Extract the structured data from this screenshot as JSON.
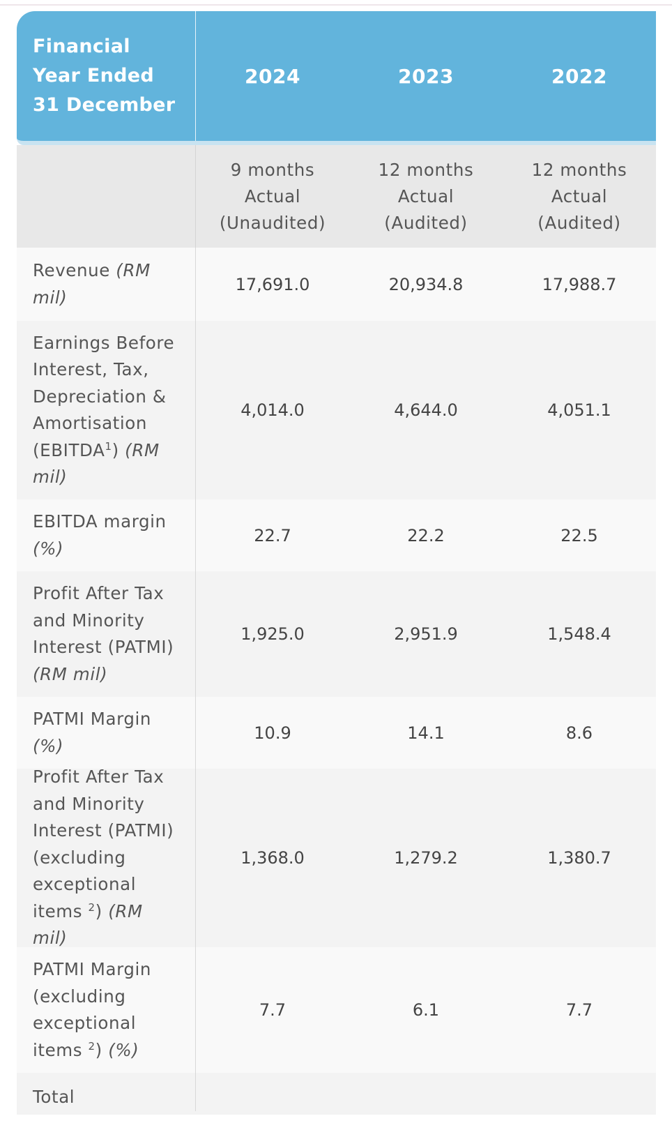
{
  "table": {
    "header": {
      "label": "Financial Year Ended 31 December",
      "years": [
        "2024",
        "2023",
        "2022"
      ]
    },
    "periods": [
      {
        "months": "9 months",
        "kind": "Actual",
        "status": "(Unaudited)"
      },
      {
        "months": "12 months",
        "kind": "Actual",
        "status": "(Audited)"
      },
      {
        "months": "12 months",
        "kind": "Actual",
        "status": "(Audited)"
      }
    ],
    "rows": [
      {
        "label": "Revenue",
        "unit": "(RM mil)",
        "values": [
          "17,691.0",
          "20,934.8",
          "17,988.7"
        ]
      },
      {
        "label_pre": "Earnings Before Interest, Tax, Depreciation & Amortisation (EBITDA",
        "footnote": "1",
        "label_post": ")",
        "unit": "(RM mil)",
        "values": [
          "4,014.0",
          "4,644.0",
          "4,051.1"
        ]
      },
      {
        "label": "EBITDA margin",
        "unit": "(%)",
        "values": [
          "22.7",
          "22.2",
          "22.5"
        ]
      },
      {
        "label": "Profit After Tax and Minority Interest (PATMI)",
        "unit": "(RM mil)",
        "values": [
          "1,925.0",
          "2,951.9",
          "1,548.4"
        ]
      },
      {
        "label": "PATMI Margin",
        "unit": "(%)",
        "values": [
          "10.9",
          "14.1",
          "8.6"
        ]
      },
      {
        "label_pre": "Profit After Tax and Minority Interest (PATMI) (excluding exceptional items ",
        "footnote": "2",
        "label_post": ")",
        "unit": "(RM mil)",
        "values": [
          "1,368.0",
          "1,279.2",
          "1,380.7"
        ]
      },
      {
        "label_pre": "PATMI Margin (excluding exceptional items ",
        "footnote": "2",
        "label_post": ")",
        "unit": "(%)",
        "values": [
          "7.7",
          "6.1",
          "7.7"
        ]
      },
      {
        "label": "Total",
        "unit": "",
        "values": [
          "",
          "",
          ""
        ]
      }
    ]
  }
}
